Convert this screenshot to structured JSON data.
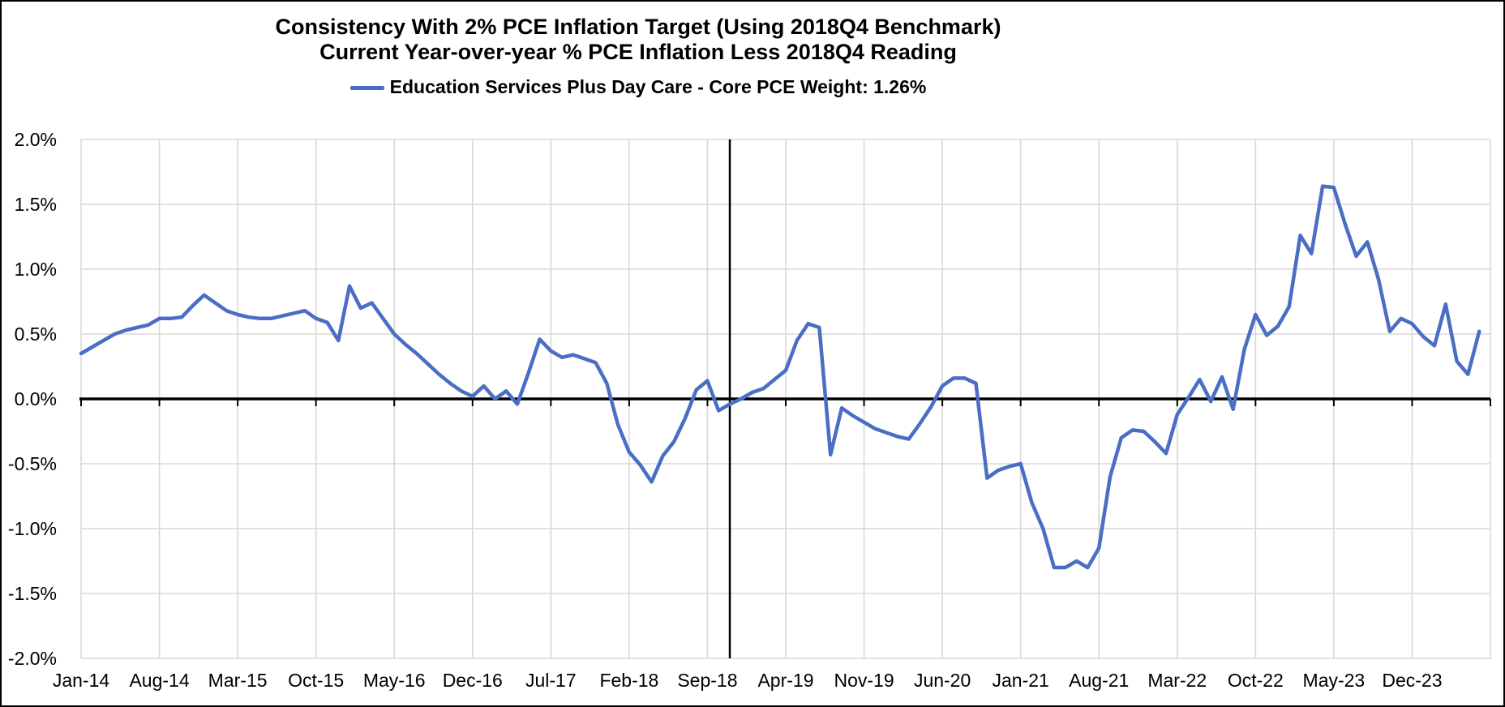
{
  "header": {
    "title": "Consistency With 2% PCE Inflation Target (Using 2018Q4 Benchmark)",
    "subtitle": "Current Year-over-year % PCE Inflation Less 2018Q4 Reading"
  },
  "legend": {
    "series_label": "Education Services Plus Day Care  - Core PCE Weight: 1.26%"
  },
  "colors": {
    "series": "#4A6EC4",
    "gridline": "#D8D8D8",
    "axis": "#000000",
    "benchmark_line": "#000000",
    "text": "#000000"
  },
  "chart_data": {
    "type": "line",
    "title": "Consistency With 2% PCE Inflation Target (Using 2018Q4 Benchmark)",
    "subtitle": "Current Year-over-year % PCE Inflation Less 2018Q4 Reading",
    "legend_position": "top",
    "grid": true,
    "ylim": [
      -2.0,
      2.0
    ],
    "y_tick_labels": [
      "2.0%",
      "1.5%",
      "1.0%",
      "0.5%",
      "0.0%",
      "-0.5%",
      "-1.0%",
      "-1.5%",
      "-2.0%"
    ],
    "y_tick_values": [
      2.0,
      1.5,
      1.0,
      0.5,
      0.0,
      -0.5,
      -1.0,
      -1.5,
      -2.0
    ],
    "x_tick_labels": [
      "Jan-14",
      "Aug-14",
      "Mar-15",
      "Oct-15",
      "May-16",
      "Dec-16",
      "Jul-17",
      "Feb-18",
      "Sep-18",
      "Apr-19",
      "Nov-19",
      "Jun-20",
      "Jan-21",
      "Aug-21",
      "Mar-22",
      "Oct-22",
      "May-23",
      "Dec-23"
    ],
    "x_tick_interval_months": 7,
    "benchmark_vertical_line_month": "Nov-18",
    "benchmark_month_index": 58,
    "series": [
      {
        "name": "Education Services Plus Day Care  - Core PCE Weight: 1.26%",
        "color": "#4A6EC4",
        "x": [
          "Jan-14",
          "Feb-14",
          "Mar-14",
          "Apr-14",
          "May-14",
          "Jun-14",
          "Jul-14",
          "Aug-14",
          "Sep-14",
          "Oct-14",
          "Nov-14",
          "Dec-14",
          "Jan-15",
          "Feb-15",
          "Mar-15",
          "Apr-15",
          "May-15",
          "Jun-15",
          "Jul-15",
          "Aug-15",
          "Sep-15",
          "Oct-15",
          "Nov-15",
          "Dec-15",
          "Jan-16",
          "Feb-16",
          "Mar-16",
          "Apr-16",
          "May-16",
          "Jun-16",
          "Jul-16",
          "Aug-16",
          "Sep-16",
          "Oct-16",
          "Nov-16",
          "Dec-16",
          "Jan-17",
          "Feb-17",
          "Mar-17",
          "Apr-17",
          "May-17",
          "Jun-17",
          "Jul-17",
          "Aug-17",
          "Sep-17",
          "Oct-17",
          "Nov-17",
          "Dec-17",
          "Jan-18",
          "Feb-18",
          "Mar-18",
          "Apr-18",
          "May-18",
          "Jun-18",
          "Jul-18",
          "Aug-18",
          "Sep-18",
          "Oct-18",
          "Nov-18",
          "Dec-18",
          "Jan-19",
          "Feb-19",
          "Mar-19",
          "Apr-19",
          "May-19",
          "Jun-19",
          "Jul-19",
          "Aug-19",
          "Sep-19",
          "Oct-19",
          "Nov-19",
          "Dec-19",
          "Jan-20",
          "Feb-20",
          "Mar-20",
          "Apr-20",
          "May-20",
          "Jun-20",
          "Jul-20",
          "Aug-20",
          "Sep-20",
          "Oct-20",
          "Nov-20",
          "Dec-20",
          "Jan-21",
          "Feb-21",
          "Mar-21",
          "Apr-21",
          "May-21",
          "Jun-21",
          "Jul-21",
          "Aug-21",
          "Sep-21",
          "Oct-21",
          "Nov-21",
          "Dec-21",
          "Jan-22",
          "Feb-22",
          "Mar-22",
          "Apr-22",
          "May-22",
          "Jun-22",
          "Jul-22",
          "Aug-22",
          "Sep-22",
          "Oct-22",
          "Nov-22",
          "Dec-22",
          "Jan-23",
          "Feb-23",
          "Mar-23",
          "Apr-23",
          "May-23",
          "Jun-23",
          "Jul-23",
          "Aug-23",
          "Sep-23",
          "Oct-23",
          "Nov-23",
          "Dec-23",
          "Jan-24",
          "Feb-24",
          "Mar-24",
          "Apr-24",
          "May-24",
          "Jun-24"
        ],
        "values": [
          0.35,
          0.4,
          0.45,
          0.5,
          0.53,
          0.55,
          0.57,
          0.62,
          0.62,
          0.63,
          0.72,
          0.8,
          0.74,
          0.68,
          0.65,
          0.63,
          0.62,
          0.62,
          0.64,
          0.66,
          0.68,
          0.62,
          0.59,
          0.45,
          0.87,
          0.7,
          0.74,
          0.62,
          0.5,
          0.42,
          0.35,
          0.27,
          0.19,
          0.12,
          0.06,
          0.02,
          0.1,
          0.0,
          0.06,
          -0.04,
          0.2,
          0.46,
          0.37,
          0.32,
          0.34,
          0.31,
          0.28,
          0.12,
          -0.2,
          -0.41,
          -0.51,
          -0.64,
          -0.44,
          -0.33,
          -0.15,
          0.07,
          0.14,
          -0.09,
          -0.04,
          0.0,
          0.05,
          0.08,
          0.15,
          0.22,
          0.45,
          0.58,
          0.55,
          -0.43,
          -0.07,
          -0.13,
          -0.18,
          -0.23,
          -0.26,
          -0.29,
          -0.31,
          -0.19,
          -0.06,
          0.1,
          0.16,
          0.16,
          0.12,
          -0.61,
          -0.55,
          -0.52,
          -0.5,
          -0.8,
          -1.0,
          -1.3,
          -1.3,
          -1.25,
          -1.3,
          -1.15,
          -0.6,
          -0.3,
          -0.24,
          -0.25,
          -0.33,
          -0.42,
          -0.12,
          0.01,
          0.15,
          -0.02,
          0.17,
          -0.08,
          0.38,
          0.65,
          0.49,
          0.56,
          0.71,
          1.26,
          1.12,
          1.64,
          1.63,
          1.35,
          1.1,
          1.21,
          0.92,
          0.52,
          0.62,
          0.58,
          0.48,
          0.41,
          0.73,
          0.29,
          0.19,
          0.52
        ]
      }
    ]
  }
}
